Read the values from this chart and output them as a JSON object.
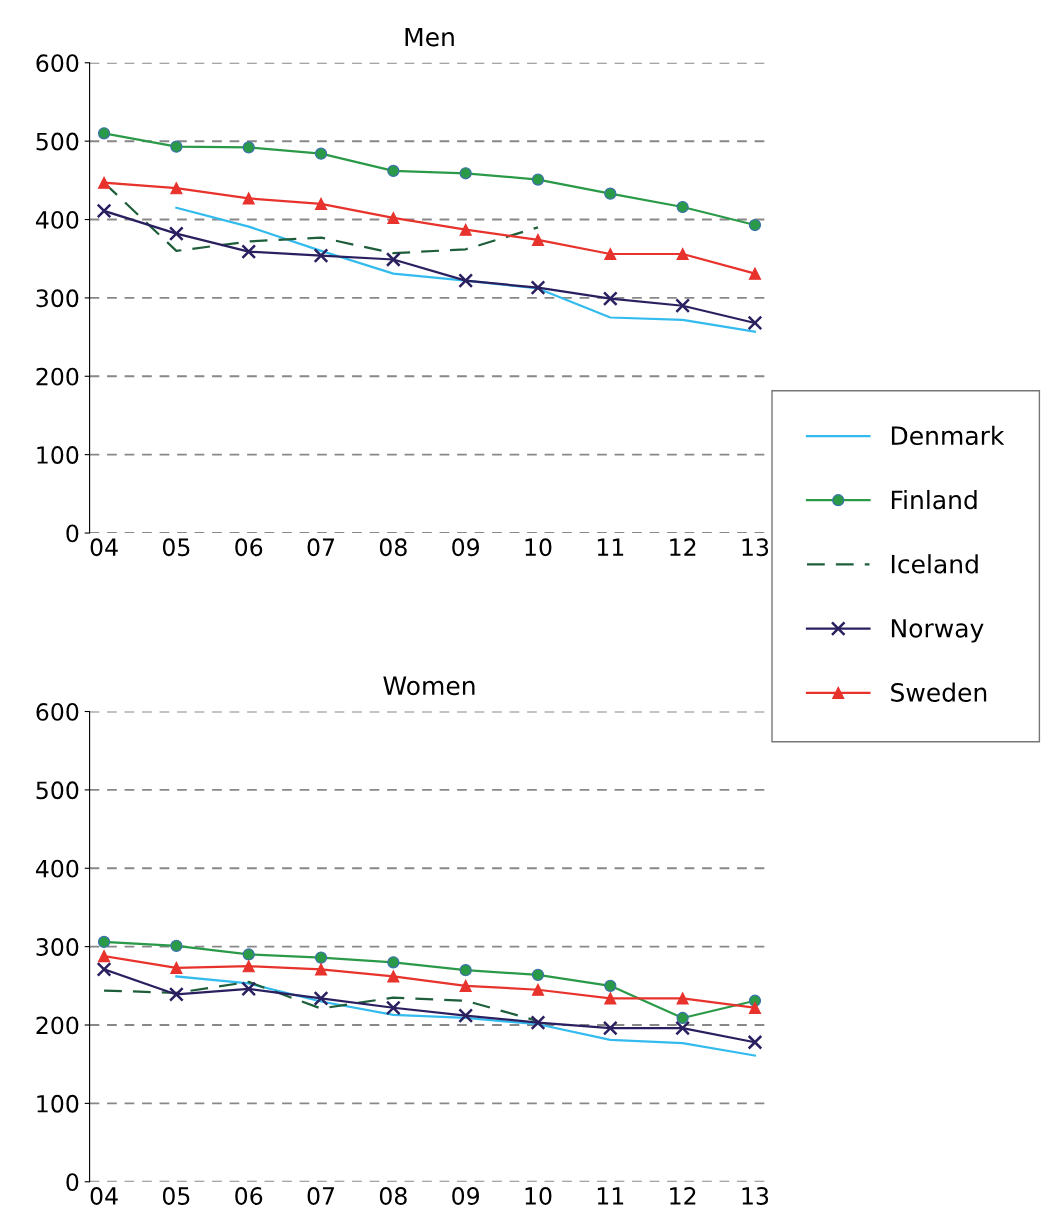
{
  "chart_data": [
    {
      "type": "line",
      "title": "Men",
      "categories": [
        "04",
        "05",
        "06",
        "07",
        "08",
        "09",
        "10",
        "11",
        "12",
        "13"
      ],
      "ylim": [
        0,
        600
      ],
      "yticks": [
        0,
        100,
        200,
        300,
        400,
        500,
        600
      ],
      "grid": "y",
      "legend": "right",
      "series": [
        {
          "name": "Denmark",
          "color": "#33bbee",
          "marker": "none",
          "line_style": "solid",
          "values": [
            null,
            415,
            391,
            360,
            331,
            322,
            312,
            275,
            272,
            257
          ]
        },
        {
          "name": "Finland",
          "color": "#2a9a48",
          "marker": "circle",
          "line_style": "solid",
          "values": [
            510,
            493,
            492,
            484,
            462,
            459,
            451,
            433,
            416,
            393
          ]
        },
        {
          "name": "Iceland",
          "color": "#1e5e3a",
          "marker": "none",
          "line_style": "dashed",
          "values": [
            447,
            360,
            372,
            377,
            357,
            362,
            390,
            null,
            null,
            null
          ]
        },
        {
          "name": "Norway",
          "color": "#2a2060",
          "marker": "cross",
          "line_style": "solid",
          "values": [
            411,
            382,
            359,
            354,
            349,
            322,
            313,
            299,
            290,
            268
          ]
        },
        {
          "name": "Sweden",
          "color": "#e8322c",
          "marker": "triangle",
          "line_style": "solid",
          "values": [
            447,
            440,
            427,
            420,
            402,
            387,
            374,
            356,
            356,
            331
          ]
        }
      ]
    },
    {
      "type": "line",
      "title": "Women",
      "categories": [
        "04",
        "05",
        "06",
        "07",
        "08",
        "09",
        "10",
        "11",
        "12",
        "13"
      ],
      "ylim": [
        0,
        600
      ],
      "yticks": [
        0,
        100,
        200,
        300,
        400,
        500,
        600
      ],
      "grid": "y",
      "legend": "right",
      "series": [
        {
          "name": "Denmark",
          "color": "#33bbee",
          "marker": "none",
          "line_style": "solid",
          "values": [
            null,
            262,
            253,
            230,
            213,
            209,
            201,
            181,
            177,
            161
          ]
        },
        {
          "name": "Finland",
          "color": "#2a9a48",
          "marker": "circle",
          "line_style": "solid",
          "values": [
            306,
            301,
            290,
            286,
            280,
            270,
            264,
            250,
            209,
            231
          ]
        },
        {
          "name": "Iceland",
          "color": "#1e5e3a",
          "marker": "none",
          "line_style": "dashed",
          "values": [
            244,
            241,
            255,
            221,
            235,
            231,
            205,
            null,
            null,
            null
          ]
        },
        {
          "name": "Norway",
          "color": "#2a2060",
          "marker": "cross",
          "line_style": "solid",
          "values": [
            271,
            239,
            246,
            234,
            222,
            212,
            203,
            196,
            196,
            178
          ]
        },
        {
          "name": "Sweden",
          "color": "#e8322c",
          "marker": "triangle",
          "line_style": "solid",
          "values": [
            288,
            273,
            275,
            271,
            262,
            250,
            245,
            234,
            234,
            222
          ]
        }
      ]
    }
  ]
}
